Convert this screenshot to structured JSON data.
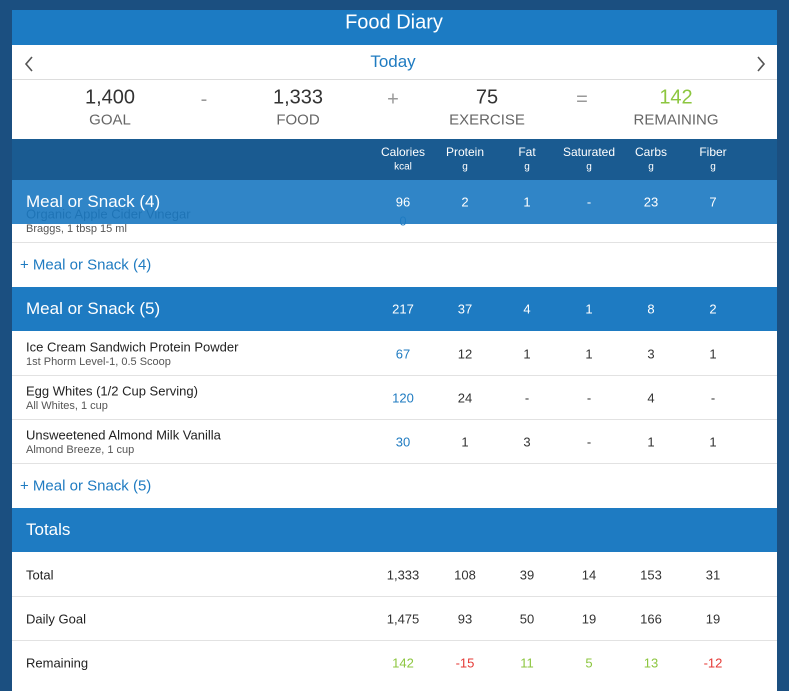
{
  "header": {
    "title": "Food Diary"
  },
  "nav": {
    "date": "Today"
  },
  "summary": {
    "items": [
      {
        "value": "1,400",
        "label": "GOAL"
      },
      {
        "value": "1,333",
        "label": "FOOD"
      },
      {
        "value": 75,
        "label": "EXERCISE"
      },
      {
        "value": 142,
        "label": "REMAINING"
      }
    ],
    "operators": [
      "-",
      "+",
      "="
    ]
  },
  "columns": [
    {
      "name": "Calories",
      "unit": "kcal"
    },
    {
      "name": "Protein",
      "unit": "g"
    },
    {
      "name": "Fat",
      "unit": "g"
    },
    {
      "name": "Saturated",
      "unit": "g"
    },
    {
      "name": "Carbs",
      "unit": "g"
    },
    {
      "name": "Fiber",
      "unit": "g"
    }
  ],
  "meals": [
    {
      "title": "Meal or Snack (4)",
      "totals": [
        96,
        2,
        1,
        "-",
        23,
        7
      ],
      "items": [
        {
          "name": "Organic Apple Cider Vinegar",
          "detail": "Braggs, 1 tbsp 15 ml",
          "values": [
            0
          ]
        }
      ],
      "add": "+ Meal or Snack (4)"
    },
    {
      "title": "Meal or Snack (5)",
      "totals": [
        217,
        37,
        4,
        1,
        8,
        2
      ],
      "items": [
        {
          "name": "Ice Cream Sandwich Protein Powder",
          "detail": "1st Phorm Level-1, 0.5 Scoop",
          "values": [
            67,
            12,
            1,
            1,
            3,
            1
          ]
        },
        {
          "name": "Egg Whites (1/2 Cup Serving)",
          "detail": "All Whites, 1 cup",
          "values": [
            120,
            24,
            "-",
            "-",
            4,
            "-"
          ]
        },
        {
          "name": "Unsweetened Almond Milk Vanilla",
          "detail": "Almond Breeze, 1 cup",
          "values": [
            30,
            1,
            3,
            "-",
            1,
            1
          ]
        }
      ],
      "add": "+ Meal or Snack (5)"
    }
  ],
  "totals": {
    "title": "Totals",
    "rows": [
      {
        "label": "Total",
        "values": [
          "1,333",
          108,
          39,
          14,
          153,
          31
        ]
      },
      {
        "label": "Daily Goal",
        "values": [
          "1,475",
          93,
          50,
          19,
          166,
          19
        ]
      },
      {
        "label": "Remaining",
        "values": [
          142,
          -15,
          11,
          5,
          13,
          -12
        ]
      }
    ]
  }
}
